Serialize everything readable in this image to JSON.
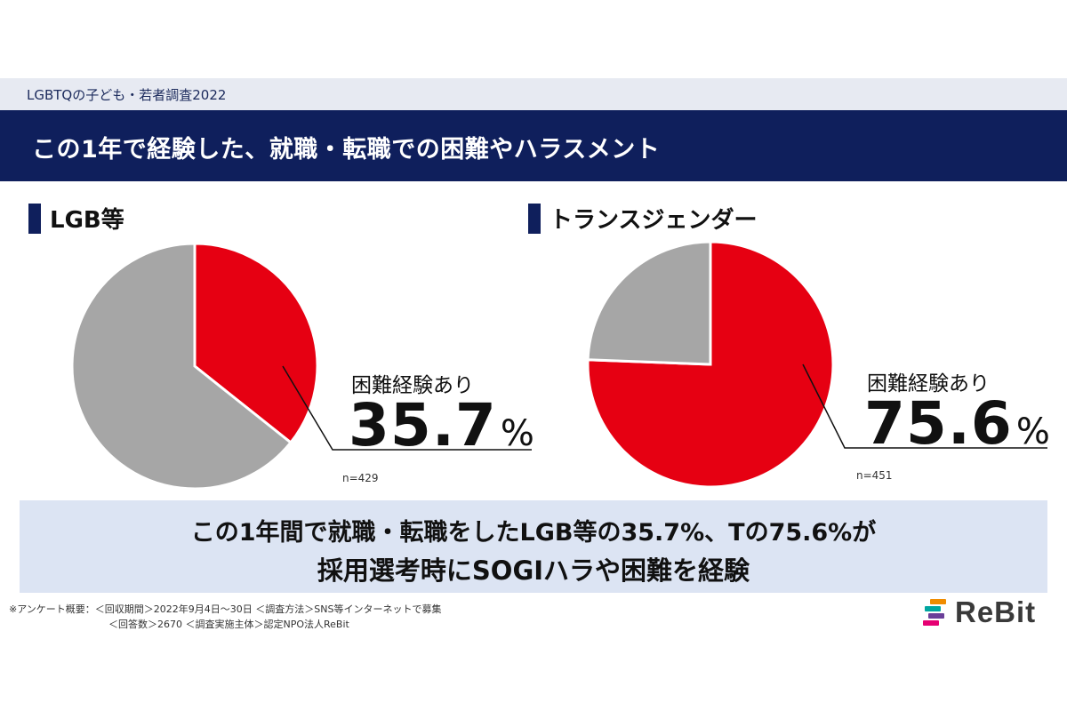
{
  "header": {
    "survey_label": "LGBTQの子ども・若者調査2022",
    "title": "この1年で経験した、就職・転職での困難やハラスメント"
  },
  "sections": [
    {
      "heading": "LGB等",
      "callout_label": "困難経験あり",
      "value_text": "35.7",
      "unit": "%",
      "n_text": "n=429"
    },
    {
      "heading": "トランスジェンダー",
      "callout_label": "困難経験あり",
      "value_text": "75.6",
      "unit": "%",
      "n_text": "n=451"
    }
  ],
  "chart_data": [
    {
      "type": "pie",
      "title": "LGB等",
      "slices": [
        {
          "name": "困難経験あり",
          "value": 35.7,
          "color": "#e60012"
        },
        {
          "name": "",
          "value": 64.3,
          "color": "#a6a6a6"
        }
      ],
      "n": 429
    },
    {
      "type": "pie",
      "title": "トランスジェンダー",
      "slices": [
        {
          "name": "困難経験あり",
          "value": 75.6,
          "color": "#e60012"
        },
        {
          "name": "",
          "value": 24.4,
          "color": "#a6a6a6"
        }
      ],
      "n": 451
    }
  ],
  "summary": {
    "line1": "この1年間で就職・転職をしたLGB等の35.7%、Tの75.6%が",
    "line2": "採用選考時にSOGIハラや困難を経験"
  },
  "footnote": {
    "line1": "※アンケート概要：＜回収期間＞2022年9月4日〜30日 ＜調査方法＞SNS等インターネットで募集",
    "line2": "＜回答数＞2670 ＜調査実施主体＞認定NPO法人ReBit"
  },
  "logo": {
    "text": "ReBit",
    "colors": [
      "#f08c00",
      "#00a6a0",
      "#6a3f99",
      "#e60073"
    ]
  },
  "colors": {
    "navy": "#0f1f5c",
    "red": "#e60012",
    "gray": "#a6a6a6",
    "summary_bg": "#dce4f3"
  }
}
